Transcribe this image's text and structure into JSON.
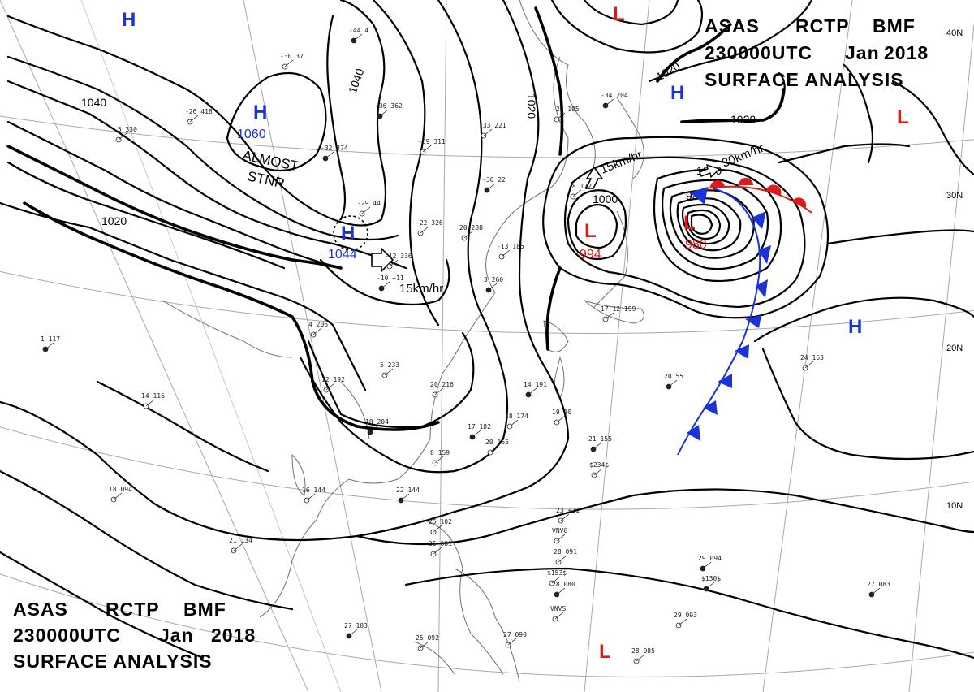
{
  "title_top": {
    "line1": [
      "ASAS",
      "RCTP",
      "BMF"
    ],
    "line2": [
      "230000UTC",
      "Jan",
      "2018"
    ],
    "line3": "SURFACE ANALYSIS"
  },
  "title_bottom": {
    "line1": [
      "ASAS",
      "RCTP",
      "BMF"
    ],
    "line2": [
      "230000UTC",
      "Jan",
      "2018"
    ],
    "line3": "SURFACE ANALYSIS"
  },
  "colors": {
    "high": "#1a33d6",
    "low": "#e0191b",
    "cold_front": "#1a33d6",
    "warm_front": "#e0191b",
    "isobar": "#000000",
    "grid": "#9a9a9a",
    "coast": "#6a6a6a"
  },
  "latitude_labels": [
    "40N",
    "30N",
    "20N",
    "10N"
  ],
  "pressure_centers": [
    {
      "type": "H",
      "value": "1060",
      "note": "ALMOST STNR"
    },
    {
      "type": "H",
      "value": "1044",
      "note": "15km/hr"
    },
    {
      "type": "H",
      "value": ""
    },
    {
      "type": "H",
      "value": ""
    },
    {
      "type": "H",
      "value": ""
    },
    {
      "type": "L",
      "value": "994",
      "note": "15km/hr"
    },
    {
      "type": "L",
      "value": "980",
      "note": "30km/hr"
    },
    {
      "type": "L",
      "value": ""
    },
    {
      "type": "L",
      "value": ""
    },
    {
      "type": "L",
      "value": ""
    }
  ],
  "isobar_labels": [
    "1040",
    "1040",
    "1020",
    "1020",
    "1020",
    "1020",
    "1000",
    "1000",
    "980"
  ],
  "stations": [
    "-44 4",
    "-30 37",
    "-26 418",
    "-36 362",
    "-5 330",
    "-39 311",
    "-32 374",
    "-29 44",
    "-22 326",
    "-30 22",
    "20 288",
    "-12 336",
    "-10 +11",
    "-20 195",
    "-33 221",
    "-34 204",
    "-13 185",
    "-8 172",
    "3 260",
    "5 233",
    "4 206",
    "10 204",
    "12 192",
    "20 216",
    "17 182",
    "20 165",
    "8 159",
    "14 191",
    "18 174",
    "19 10",
    "22 144",
    "16 144",
    "21 134",
    "21 155",
    "17 12 199",
    "24 163",
    "20 55",
    "23 +21",
    "28 091",
    "28 080",
    "25 102",
    "25 081",
    "27 103",
    "25 092",
    "27 090",
    "29 094",
    "29 093",
    "28 085",
    "27 083",
    "18 094",
    "14 116",
    "1 117",
    "$234$",
    "$153$",
    "$130$",
    "VNVG",
    "VNVS"
  ]
}
